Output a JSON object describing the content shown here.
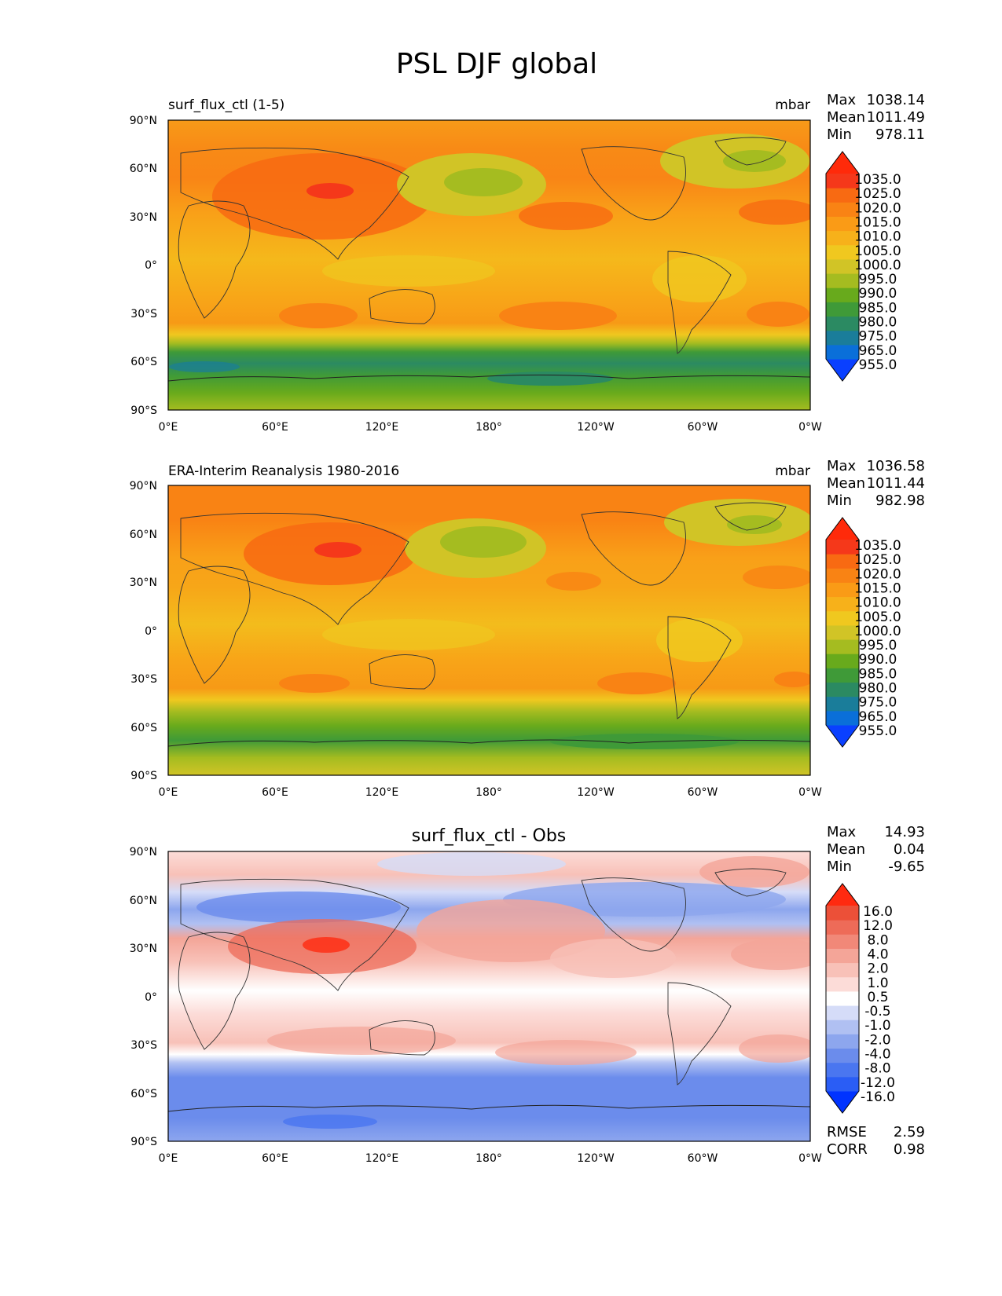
{
  "figure": {
    "title": "PSL DJF global",
    "lat_ticks": [
      "90°N",
      "60°N",
      "30°N",
      "0°",
      "30°S",
      "60°S",
      "90°S"
    ],
    "lon_ticks": [
      "0°E",
      "60°E",
      "120°E",
      "180°",
      "120°W",
      "60°W",
      "0°W"
    ]
  },
  "panels": [
    {
      "id": "test",
      "left_title": "surf_flux_ctl (1-5)",
      "center_title": "",
      "units": "mbar",
      "stats": [
        {
          "label": "Max",
          "value": "1038.14"
        },
        {
          "label": "Mean",
          "value": "1011.49"
        },
        {
          "label": "Min",
          "value": "978.11"
        }
      ],
      "colorbar_labels": [
        "1035.0",
        "1025.0",
        "1020.0",
        "1015.0",
        "1010.0",
        "1005.0",
        "1000.0",
        "995.0",
        "990.0",
        "985.0",
        "980.0",
        "975.0",
        "965.0",
        "955.0"
      ],
      "colors": [
        "#0a40ff",
        "#0a6fd9",
        "#1a7d9a",
        "#2b8a62",
        "#3f9a38",
        "#68aa1c",
        "#a5bc20",
        "#d1c426",
        "#f0c81f",
        "#f7b11a",
        "#fa9b16",
        "#f98314",
        "#f86a12",
        "#f5381a",
        "#ff2a0a"
      ]
    },
    {
      "id": "ref",
      "left_title": "ERA-Interim Reanalysis 1980-2016",
      "center_title": "",
      "units": "mbar",
      "stats": [
        {
          "label": "Max",
          "value": "1036.58"
        },
        {
          "label": "Mean",
          "value": "1011.44"
        },
        {
          "label": "Min",
          "value": "982.98"
        }
      ],
      "colorbar_labels": [
        "1035.0",
        "1025.0",
        "1020.0",
        "1015.0",
        "1010.0",
        "1005.0",
        "1000.0",
        "995.0",
        "990.0",
        "985.0",
        "980.0",
        "975.0",
        "965.0",
        "955.0"
      ],
      "colors": [
        "#0a40ff",
        "#0a6fd9",
        "#1a7d9a",
        "#2b8a62",
        "#3f9a38",
        "#68aa1c",
        "#a5bc20",
        "#d1c426",
        "#f0c81f",
        "#f7b11a",
        "#fa9b16",
        "#f98314",
        "#f86a12",
        "#f5381a",
        "#ff2a0a"
      ]
    },
    {
      "id": "diff",
      "left_title": "",
      "center_title": "surf_flux_ctl - Obs",
      "units": "",
      "stats": [
        {
          "label": "Max",
          "value": "14.93"
        },
        {
          "label": "Mean",
          "value": "0.04"
        },
        {
          "label": "Min",
          "value": "-9.65"
        }
      ],
      "colorbar_labels": [
        "16.0",
        "12.0",
        "8.0",
        "4.0",
        "2.0",
        "1.0",
        "0.5",
        "-0.5",
        "-1.0",
        "-2.0",
        "-4.0",
        "-8.0",
        "-12.0",
        "-16.0"
      ],
      "colors": [
        "#0033ff",
        "#2a5df5",
        "#4a76f0",
        "#6b8cec",
        "#8da6ee",
        "#b0c0f2",
        "#d5dcf8",
        "#ffffff",
        "#fcdcd8",
        "#f8c1b8",
        "#f4a598",
        "#f18878",
        "#ee6b58",
        "#ec5038",
        "#ff2a10"
      ],
      "metrics": [
        {
          "label": "RMSE",
          "value": "2.59"
        },
        {
          "label": "CORR",
          "value": "0.98"
        }
      ]
    }
  ]
}
